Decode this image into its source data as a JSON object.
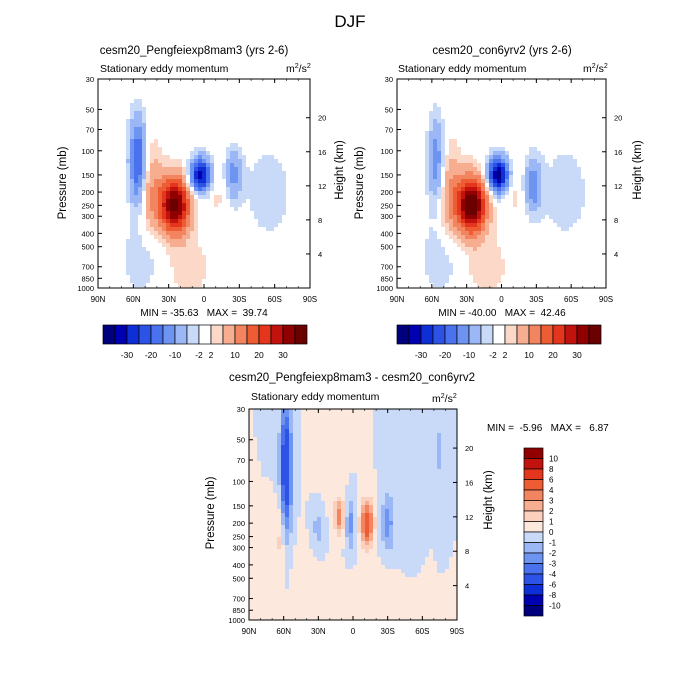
{
  "figure_title": "DJF",
  "chart_data": [
    {
      "type": "heatmap",
      "title": "cesm20_Pengfeiexp8mam3 (yrs 2-6)",
      "subtitle": "Stationary eddy momentum",
      "units_base": "m",
      "units_exp": "2",
      "units_div": "/s",
      "units_exp2": "2",
      "ylabel": "Pressure (mb)",
      "ylabel_right": "Height (km)",
      "x_ticks": [
        "90N",
        "60N",
        "30N",
        "0",
        "30S",
        "60S",
        "90S"
      ],
      "y_ticks": [
        "30",
        "50",
        "70",
        "100",
        "150",
        "200",
        "250",
        "300",
        "400",
        "500",
        "700",
        "850",
        "1000"
      ],
      "y_ticks_right": [
        "20",
        "16",
        "12",
        "8",
        "4"
      ],
      "stats": "MIN = -35.63   MAX =  39.74",
      "min": -35.63,
      "max": 39.74,
      "features": [
        {
          "lat": 25,
          "p": 250,
          "value": 38,
          "sx": 9,
          "sy": 0.33
        },
        {
          "lat": 3,
          "p": 150,
          "value": -34,
          "sx": 6,
          "sy": 0.2
        },
        {
          "lat": 56,
          "p": 120,
          "value": -22,
          "sx": 5,
          "sy": 0.5
        },
        {
          "lat": -25,
          "p": 150,
          "value": -12,
          "sx": 5,
          "sy": 0.28
        },
        {
          "lat": 45,
          "p": 200,
          "value": 9,
          "sx": 7,
          "sy": 0.55
        },
        {
          "lat": 50,
          "p": 600,
          "value": -4,
          "sx": 15,
          "sy": 0.45
        },
        {
          "lat": 15,
          "p": 700,
          "value": 4,
          "sx": 15,
          "sy": 0.35
        },
        {
          "lat": -55,
          "p": 200,
          "value": -3,
          "sx": 18,
          "sy": 0.7
        },
        {
          "lat": -12,
          "p": 200,
          "value": 3,
          "sx": 6,
          "sy": 0.35
        }
      ]
    },
    {
      "type": "heatmap",
      "title": "cesm20_con6yrv2 (yrs 2-6)",
      "subtitle": "Stationary eddy momentum",
      "units_base": "m",
      "units_exp": "2",
      "units_div": "/s",
      "units_exp2": "2",
      "ylabel": "Pressure (mb)",
      "ylabel_right": "Height (km)",
      "x_ticks": [
        "90N",
        "60N",
        "30N",
        "0",
        "30S",
        "60S",
        "90S"
      ],
      "y_ticks": [
        "30",
        "50",
        "70",
        "100",
        "150",
        "200",
        "250",
        "300",
        "400",
        "500",
        "700",
        "850",
        "1000"
      ],
      "y_ticks_right": [
        "20",
        "16",
        "12",
        "8",
        "4"
      ],
      "stats": "MIN = -40.00   MAX =  42.46",
      "min": -40.0,
      "max": 42.46,
      "features": [
        {
          "lat": 26,
          "p": 250,
          "value": 41,
          "sx": 9,
          "sy": 0.33
        },
        {
          "lat": 3,
          "p": 150,
          "value": -38,
          "sx": 6,
          "sy": 0.2
        },
        {
          "lat": 56,
          "p": 120,
          "value": -14,
          "sx": 5,
          "sy": 0.5
        },
        {
          "lat": -27,
          "p": 180,
          "value": -14,
          "sx": 5,
          "sy": 0.3
        },
        {
          "lat": 45,
          "p": 200,
          "value": 9,
          "sx": 7,
          "sy": 0.55
        },
        {
          "lat": 50,
          "p": 600,
          "value": -4,
          "sx": 15,
          "sy": 0.45
        },
        {
          "lat": 15,
          "p": 700,
          "value": 4,
          "sx": 15,
          "sy": 0.35
        },
        {
          "lat": -55,
          "p": 200,
          "value": -3,
          "sx": 18,
          "sy": 0.7
        },
        {
          "lat": -12,
          "p": 200,
          "value": 3,
          "sx": 6,
          "sy": 0.35
        }
      ]
    },
    {
      "type": "heatmap",
      "title": "cesm20_Pengfeiexp8mam3 - cesm20_con6yrv2",
      "subtitle": "Stationary eddy momentum",
      "units_base": "m",
      "units_exp": "2",
      "units_div": "/s",
      "units_exp2": "2",
      "ylabel": "Pressure (mb)",
      "ylabel_right": "Height (km)",
      "x_ticks": [
        "90N",
        "60N",
        "30N",
        "0",
        "30S",
        "60S",
        "90S"
      ],
      "y_ticks": [
        "30",
        "50",
        "70",
        "100",
        "150",
        "200",
        "250",
        "300",
        "400",
        "500",
        "700",
        "850",
        "1000"
      ],
      "y_ticks_right": [
        "20",
        "16",
        "12",
        "8",
        "4"
      ],
      "stats": "MIN =  -5.96   MAX =   6.87",
      "min": -5.96,
      "max": 6.87,
      "features": [
        {
          "lat": 58,
          "p": 80,
          "value": -6,
          "sx": 3.5,
          "sy": 0.75
        },
        {
          "lat": 63,
          "p": 250,
          "value": 1.5,
          "sx": 3,
          "sy": 0.45
        },
        {
          "lat": -12,
          "p": 200,
          "value": 5.5,
          "sx": 4,
          "sy": 0.25
        },
        {
          "lat": 12,
          "p": 180,
          "value": 3.5,
          "sx": 3,
          "sy": 0.2
        },
        {
          "lat": 2,
          "p": 200,
          "value": -2.5,
          "sx": 3,
          "sy": 0.3
        },
        {
          "lat": -30,
          "p": 200,
          "value": -2.5,
          "sx": 4,
          "sy": 0.35
        },
        {
          "lat": 30,
          "p": 220,
          "value": -1.5,
          "sx": 4,
          "sy": 0.3
        },
        {
          "lat": -45,
          "p": 100,
          "value": -1,
          "sx": 6,
          "sy": 0.7
        },
        {
          "lat": -75,
          "p": 60,
          "value": -1.2,
          "sx": 3,
          "sy": 0.5
        },
        {
          "lat": 20,
          "p": 70,
          "value": 0.8,
          "sx": 8,
          "sy": 0.6
        },
        {
          "lat": 40,
          "p": 500,
          "value": 0.6,
          "sx": 10,
          "sy": 0.4
        },
        {
          "lat": -20,
          "p": 700,
          "value": 0.5,
          "sx": 15,
          "sy": 0.4
        }
      ]
    }
  ],
  "colorbars": [
    {
      "name": "top",
      "levels": [
        -35,
        -30,
        -25,
        -20,
        -15,
        -10,
        -5,
        -2,
        2,
        5,
        10,
        15,
        20,
        25,
        30,
        35
      ],
      "labels": [
        "-30",
        "-20",
        "-10",
        "-2",
        "2",
        "10",
        "20",
        "30"
      ],
      "colors": [
        "#00007f",
        "#0000b3",
        "#0f2fd6",
        "#2d52e6",
        "#4a72ee",
        "#6e94f2",
        "#9bb7f5",
        "#c9daf8",
        "#ffffff",
        "#fbd8c8",
        "#f6ad90",
        "#f28560",
        "#ee5c34",
        "#e3361c",
        "#c2120e",
        "#910000",
        "#6a0000"
      ]
    },
    {
      "name": "diff",
      "levels": [
        -10,
        -8,
        -6,
        -4,
        -3,
        -2,
        -1,
        0,
        1,
        2,
        3,
        4,
        6,
        8,
        10
      ],
      "labels": [
        "10",
        "8",
        "6",
        "4",
        "3",
        "2",
        "1",
        "0",
        "-1",
        "-2",
        "-3",
        "-4",
        "-6",
        "-8",
        "-10"
      ],
      "colors": [
        "#00007f",
        "#0000b3",
        "#0f2fd6",
        "#2d52e6",
        "#4a72ee",
        "#6e94f2",
        "#9bb7f5",
        "#c9daf8",
        "#fde8dd",
        "#fbd0bc",
        "#f6ad90",
        "#f28560",
        "#ee5c34",
        "#e3361c",
        "#c2120e",
        "#910000"
      ]
    }
  ]
}
